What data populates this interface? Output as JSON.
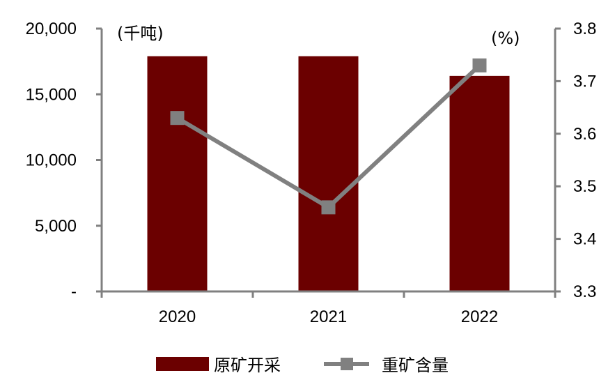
{
  "chart_data": {
    "type": "bar+line",
    "categories": [
      "2020",
      "2021",
      "2022"
    ],
    "series": [
      {
        "name": "原矿开采",
        "type": "bar",
        "axis": "left",
        "color": "#6b0000",
        "values": [
          17900,
          17900,
          16400
        ]
      },
      {
        "name": "重矿含量",
        "type": "line",
        "axis": "right",
        "color": "#808080",
        "marker": "square",
        "values": [
          3.63,
          3.46,
          3.73
        ]
      }
    ],
    "left_axis": {
      "unit_label": "(千吨)",
      "ylim": [
        0,
        20000
      ],
      "ticks": [
        0,
        5000,
        10000,
        15000,
        20000
      ],
      "tick_labels": [
        "-",
        "5,000",
        "10,000",
        "15,000",
        "20,000"
      ]
    },
    "right_axis": {
      "unit_label": "(%)",
      "ylim": [
        3.3,
        3.8
      ],
      "ticks": [
        3.3,
        3.4,
        3.5,
        3.6,
        3.7,
        3.8
      ],
      "tick_labels": [
        "3.3",
        "3.4",
        "3.5",
        "3.6",
        "3.7",
        "3.8"
      ]
    },
    "grid": false,
    "legend_position": "bottom",
    "axis_color": "#808080"
  }
}
